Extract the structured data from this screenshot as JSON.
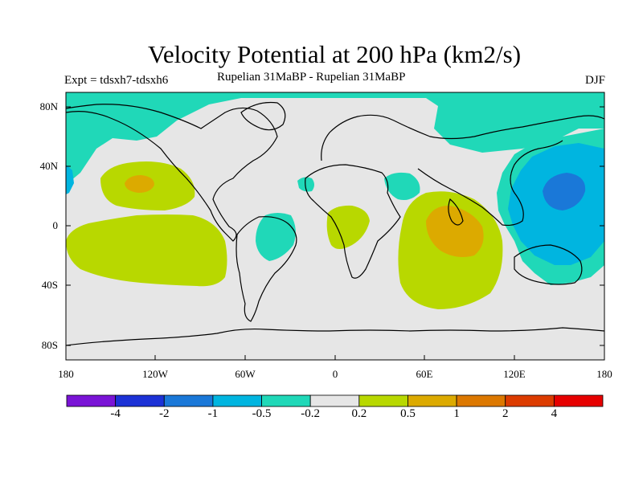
{
  "title": "Velocity Potential at 200 hPa (km2/s)",
  "experiment": "Expt = tdsxh7-tdsxh6",
  "subtitle": "Rupelian  31MaBP - Rupelian  31MaBP",
  "season": "DJF",
  "lat_labels": [
    "80N",
    "40N",
    "0",
    "40S",
    "80S"
  ],
  "lon_labels": [
    "180",
    "120W",
    "60W",
    "0",
    "60E",
    "120E",
    "180"
  ],
  "colorbar": {
    "colors": [
      "#7a14d6",
      "#1c32d6",
      "#1a78d8",
      "#00b5e0",
      "#20d8b8",
      "#e6e6e6",
      "#b8d800",
      "#dcaa00",
      "#dc7800",
      "#dc3c00",
      "#e60000"
    ],
    "labels": [
      "-4",
      "-2",
      "-1",
      "-0.5",
      "-0.2",
      "0.2",
      "0.5",
      "1",
      "2",
      "4"
    ]
  },
  "colors": {
    "teal": "#20d8b8",
    "cyan": "#00b5e0",
    "blue": "#1a78d8",
    "lime": "#b8d800",
    "orange": "#dcaa00",
    "neutral": "#e6e6e6"
  }
}
